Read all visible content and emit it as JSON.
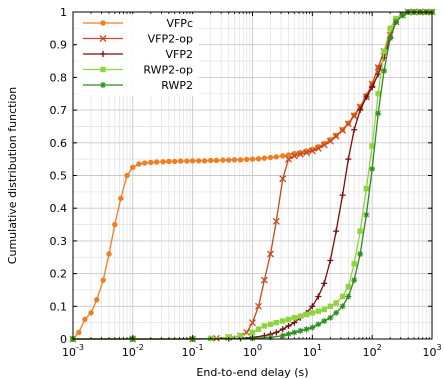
{
  "chart_data": {
    "type": "line",
    "title": "",
    "xlabel": "End-to-end delay (s)",
    "ylabel": "Cumulative distribution function",
    "x_scale": "log",
    "xlim": [
      0.001,
      1000
    ],
    "ylim": [
      0,
      1
    ],
    "grid": true,
    "legend_position": "top-left",
    "x_ticks": [
      {
        "value": 0.001,
        "base": "10",
        "exp": "-3"
      },
      {
        "value": 0.01,
        "base": "10",
        "exp": "-2"
      },
      {
        "value": 0.1,
        "base": "10",
        "exp": "-1"
      },
      {
        "value": 1,
        "base": "10",
        "exp": "0"
      },
      {
        "value": 10,
        "base": "10",
        "exp": "1"
      },
      {
        "value": 100,
        "base": "10",
        "exp": "2"
      },
      {
        "value": 1000,
        "base": "10",
        "exp": "3"
      }
    ],
    "y_ticks": [
      {
        "value": 0,
        "label": "0"
      },
      {
        "value": 0.1,
        "label": "0.1"
      },
      {
        "value": 0.2,
        "label": "0.2"
      },
      {
        "value": 0.3,
        "label": "0.3"
      },
      {
        "value": 0.4,
        "label": "0.4"
      },
      {
        "value": 0.5,
        "label": "0.5"
      },
      {
        "value": 0.6,
        "label": "0.6"
      },
      {
        "value": 0.7,
        "label": "0.7"
      },
      {
        "value": 0.8,
        "label": "0.8"
      },
      {
        "value": 0.9,
        "label": "0.9"
      },
      {
        "value": 1,
        "label": "1"
      }
    ],
    "series": [
      {
        "name": "VFPc",
        "color": "#f07d1f",
        "marker": "circle",
        "x": [
          0.001,
          0.00125,
          0.00158,
          0.002,
          0.0025,
          0.0032,
          0.004,
          0.005,
          0.0063,
          0.008,
          0.01,
          0.0126,
          0.0158,
          0.02,
          0.025,
          0.032,
          0.04,
          0.05,
          0.063,
          0.08,
          0.1,
          0.126,
          0.158,
          0.2,
          0.25,
          0.32,
          0.4,
          0.5,
          0.63,
          0.8,
          1,
          1.26,
          1.58,
          2,
          2.5,
          3.2,
          4,
          5,
          6.3,
          8,
          10,
          12.6,
          15.8,
          20,
          25,
          32,
          40,
          50,
          63,
          80,
          100,
          126,
          158,
          200,
          250,
          320,
          400,
          500,
          630,
          800,
          1000
        ],
        "y": [
          0.0,
          0.02,
          0.06,
          0.08,
          0.12,
          0.18,
          0.26,
          0.35,
          0.43,
          0.5,
          0.525,
          0.535,
          0.538,
          0.54,
          0.541,
          0.542,
          0.543,
          0.543,
          0.544,
          0.544,
          0.545,
          0.545,
          0.545,
          0.546,
          0.546,
          0.547,
          0.547,
          0.548,
          0.548,
          0.549,
          0.55,
          0.551,
          0.553,
          0.555,
          0.557,
          0.56,
          0.563,
          0.567,
          0.57,
          0.575,
          0.58,
          0.588,
          0.598,
          0.61,
          0.623,
          0.64,
          0.66,
          0.685,
          0.71,
          0.745,
          0.78,
          0.83,
          0.88,
          0.93,
          0.97,
          0.99,
          1.0,
          1.0,
          1.0,
          1.0,
          1.0
        ]
      },
      {
        "name": "VFP2-op",
        "color": "#c4491c",
        "marker": "x",
        "x": [
          0.001,
          0.01,
          0.1,
          0.25,
          0.4,
          0.63,
          0.8,
          1,
          1.26,
          1.58,
          2,
          2.5,
          3.2,
          4,
          5,
          6.3,
          8,
          10,
          12.6,
          15.8,
          20,
          25,
          32,
          40,
          50,
          63,
          80,
          100,
          126,
          158,
          200,
          250,
          320,
          400,
          500,
          630,
          800,
          1000
        ],
        "y": [
          0.0,
          0.0,
          0.0,
          0.002,
          0.005,
          0.01,
          0.02,
          0.05,
          0.1,
          0.18,
          0.26,
          0.36,
          0.49,
          0.55,
          0.56,
          0.565,
          0.57,
          0.575,
          0.583,
          0.593,
          0.605,
          0.62,
          0.638,
          0.658,
          0.682,
          0.71,
          0.74,
          0.78,
          0.83,
          0.88,
          0.93,
          0.97,
          0.99,
          1.0,
          1.0,
          1.0,
          1.0,
          1.0
        ]
      },
      {
        "name": "VFP2",
        "color": "#7a0c0c",
        "marker": "plus",
        "x": [
          0.001,
          0.01,
          0.1,
          0.4,
          0.63,
          1,
          1.58,
          2,
          2.5,
          3.2,
          4,
          5,
          6.3,
          8,
          10,
          12.6,
          15.8,
          20,
          25,
          32,
          40,
          50,
          63,
          80,
          100,
          126,
          158,
          200,
          250,
          320,
          400,
          500,
          630,
          800,
          1000
        ],
        "y": [
          0.0,
          0.0,
          0.0,
          0.001,
          0.002,
          0.005,
          0.01,
          0.015,
          0.02,
          0.03,
          0.04,
          0.05,
          0.065,
          0.08,
          0.1,
          0.13,
          0.17,
          0.24,
          0.33,
          0.44,
          0.55,
          0.64,
          0.7,
          0.74,
          0.77,
          0.81,
          0.86,
          0.92,
          0.97,
          0.99,
          1.0,
          1.0,
          1.0,
          1.0,
          1.0
        ]
      },
      {
        "name": "RWP2-op",
        "color": "#8fd43a",
        "marker": "square",
        "x": [
          0.001,
          0.01,
          0.1,
          0.2,
          0.4,
          0.63,
          1,
          1.26,
          1.58,
          2,
          2.5,
          3.2,
          4,
          5,
          6.3,
          8,
          10,
          12.6,
          15.8,
          20,
          25,
          32,
          40,
          50,
          63,
          80,
          100,
          126,
          158,
          200,
          250,
          320,
          400,
          500,
          630,
          800,
          1000
        ],
        "y": [
          0.0,
          0.0,
          0.0,
          0.002,
          0.006,
          0.01,
          0.02,
          0.03,
          0.04,
          0.045,
          0.05,
          0.055,
          0.06,
          0.065,
          0.07,
          0.075,
          0.08,
          0.085,
          0.09,
          0.1,
          0.11,
          0.13,
          0.16,
          0.23,
          0.33,
          0.46,
          0.59,
          0.75,
          0.88,
          0.95,
          0.98,
          0.99,
          1.0,
          1.0,
          1.0,
          1.0,
          1.0
        ]
      },
      {
        "name": "RWP2",
        "color": "#2e8b1e",
        "marker": "star",
        "x": [
          0.001,
          0.01,
          0.1,
          1,
          2,
          3.2,
          4,
          5,
          6.3,
          8,
          10,
          12.6,
          15.8,
          20,
          25,
          32,
          40,
          50,
          63,
          80,
          100,
          126,
          158,
          200,
          250,
          320,
          400,
          500,
          630,
          800,
          1000
        ],
        "y": [
          0.0,
          0.0,
          0.0,
          0.002,
          0.005,
          0.01,
          0.015,
          0.02,
          0.025,
          0.03,
          0.035,
          0.045,
          0.055,
          0.065,
          0.08,
          0.1,
          0.13,
          0.18,
          0.26,
          0.38,
          0.52,
          0.69,
          0.82,
          0.92,
          0.97,
          0.99,
          1.0,
          1.0,
          1.0,
          1.0,
          1.0
        ]
      }
    ]
  }
}
